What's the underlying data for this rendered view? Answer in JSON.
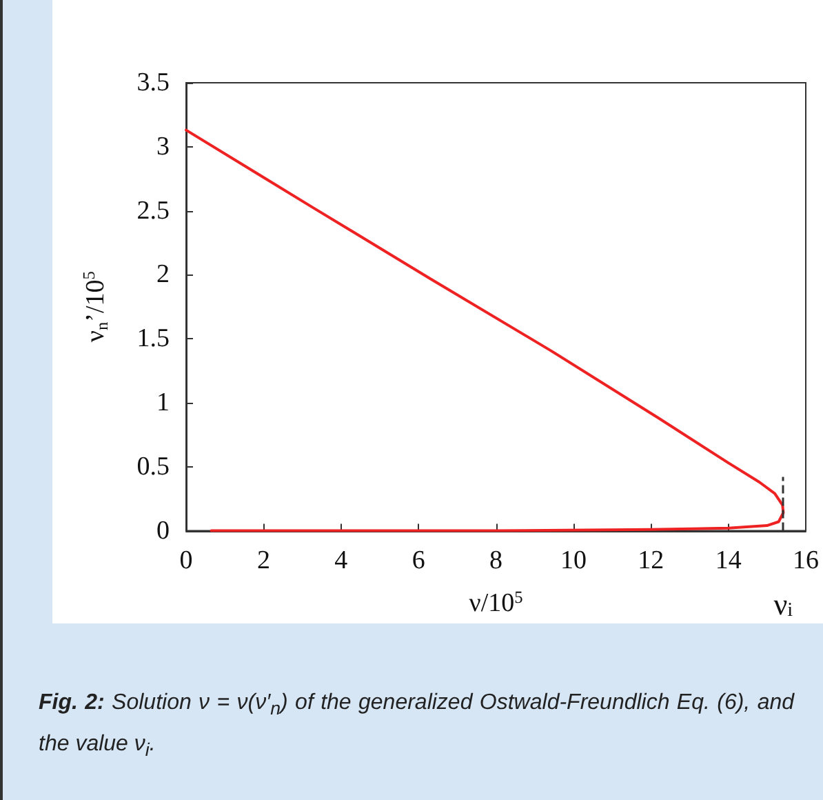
{
  "chart_data": {
    "type": "line",
    "xlabel": "ν/10$^{5}$",
    "ylabel": "ν$_{n}$’/10$^{5}$",
    "x": [
      0,
      2,
      3.3,
      6.3,
      9.4,
      12.2,
      14,
      14.8,
      15.2,
      15.4,
      15.42,
      15.3,
      15,
      14,
      12,
      8,
      0.65
    ],
    "series": [
      {
        "color": "#ee2222",
        "values": [
          3.13,
          2.76,
          2.52,
          1.97,
          1.41,
          0.88,
          0.53,
          0.38,
          0.29,
          0.2,
          0.14,
          0.07,
          0.04,
          0.02,
          0.01,
          0,
          0
        ]
      }
    ],
    "xlim": [
      0,
      16
    ],
    "xticks": [
      0,
      2,
      4,
      6,
      8,
      10,
      12,
      14,
      16
    ],
    "ylim": [
      0,
      3.5
    ],
    "yticks": [
      0,
      0.5,
      1,
      1.5,
      2,
      2.5,
      3,
      3.5
    ],
    "ref_lines": [
      {
        "axis": "x",
        "value": 15.42,
        "label": "ν$_{i}$",
        "line_style": "dashed",
        "color": "#333333"
      }
    ],
    "annotations": [
      "Fig. 2:",
      "Solution ν = ν(ν′$_{n}$) of the generalized Ostwald-Freundlich Eq. (6), and the value ν$_{i}$."
    ],
    "grid": false,
    "marker": "none",
    "line_style": "solid"
  }
}
